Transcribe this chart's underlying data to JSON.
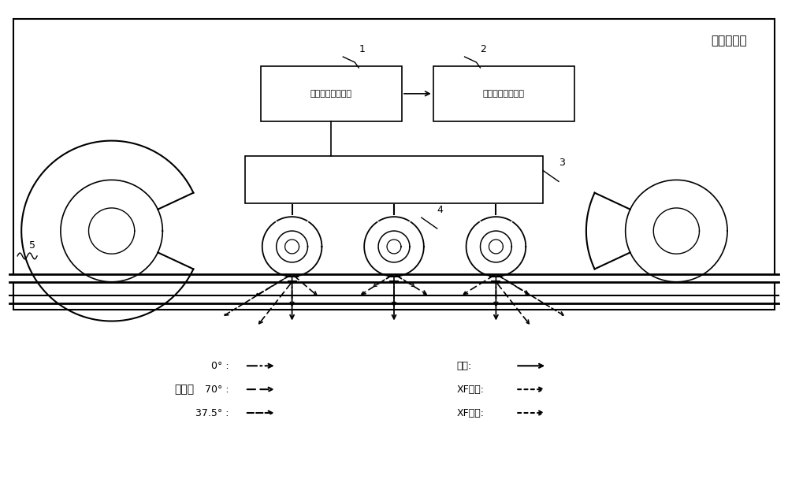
{
  "title": "钢轨探伤车",
  "box1_label": "钢轨探伤检测系统",
  "box2_label": "钢轨探伤分析系统",
  "label1": "1",
  "label2": "2",
  "label3": "3",
  "label4": "4",
  "label5": "5",
  "legend_title": "图例：",
  "legend_items_left": [
    "0°",
    "70°",
    "37.5°"
  ],
  "legend_items_right": [
    "侧打:",
    "XF一次:",
    "XF二次:"
  ],
  "bg_color": "#ffffff",
  "line_color": "#000000",
  "box_color": "#f0f0f0"
}
